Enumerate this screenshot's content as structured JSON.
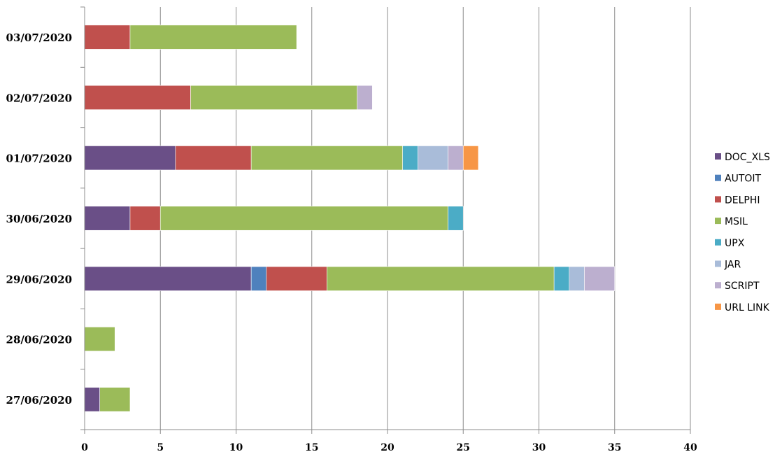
{
  "chart_data": {
    "type": "bar",
    "orientation": "horizontal",
    "stacked": true,
    "title": "",
    "xlabel": "",
    "ylabel": "",
    "categories": [
      "03/07/2020",
      "02/07/2020",
      "01/07/2020",
      "30/06/2020",
      "29/06/2020",
      "28/06/2020",
      "27/06/2020"
    ],
    "xlim": [
      0,
      40
    ],
    "xticks": [
      0,
      5,
      10,
      15,
      20,
      25,
      30,
      35,
      40
    ],
    "grid": "vertical",
    "legend_position": "right",
    "series": [
      {
        "name": "DOC_XLS",
        "color": "#6a4f87",
        "values": [
          0,
          0,
          6,
          3,
          11,
          0,
          1
        ]
      },
      {
        "name": "AUTOIT",
        "color": "#4f81bd",
        "values": [
          0,
          0,
          0,
          0,
          1,
          0,
          0
        ]
      },
      {
        "name": "DELPHI",
        "color": "#c0504d",
        "values": [
          3,
          7,
          5,
          2,
          4,
          0,
          0
        ]
      },
      {
        "name": "MSIL",
        "color": "#9bbb59",
        "values": [
          11,
          11,
          10,
          19,
          15,
          2,
          2
        ]
      },
      {
        "name": "UPX",
        "color": "#4bacc6",
        "values": [
          0,
          0,
          1,
          1,
          1,
          0,
          0
        ]
      },
      {
        "name": "JAR",
        "color": "#a9bcd9",
        "values": [
          0,
          0,
          2,
          0,
          1,
          0,
          0
        ]
      },
      {
        "name": "SCRIPT",
        "color": "#bcafcf",
        "values": [
          0,
          1,
          1,
          0,
          2,
          0,
          0
        ]
      },
      {
        "name": "URL LINK",
        "color": "#f79646",
        "values": [
          0,
          0,
          1,
          0,
          0,
          0,
          0
        ]
      }
    ]
  }
}
